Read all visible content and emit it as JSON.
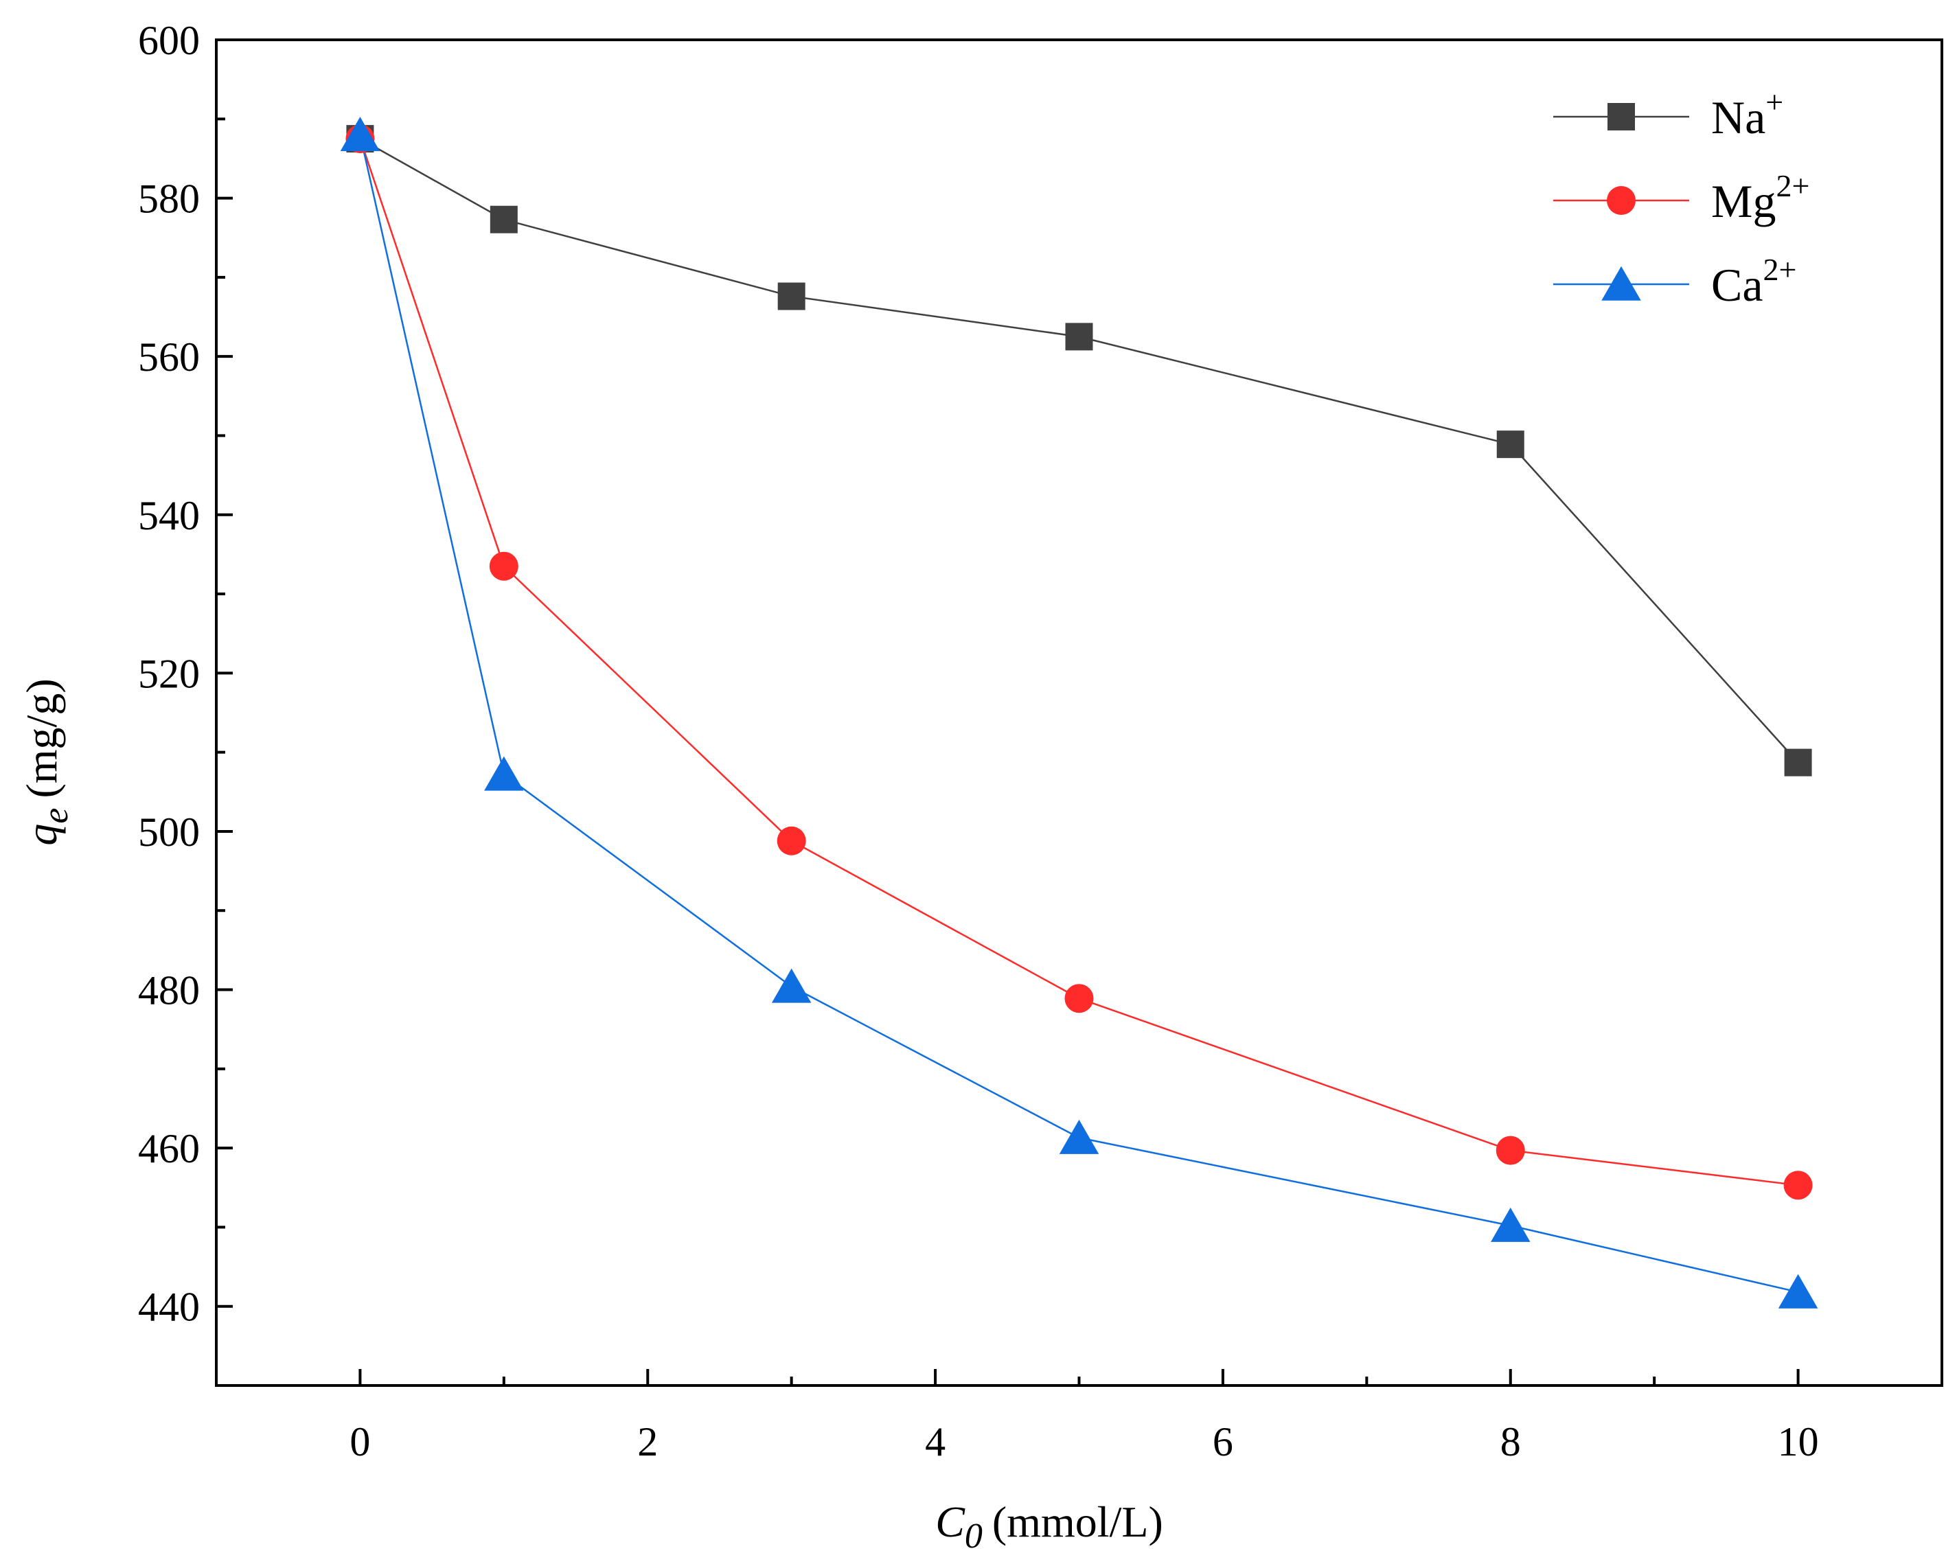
{
  "chart_data": {
    "type": "line",
    "title": "",
    "x": [
      0,
      1,
      3,
      5,
      8,
      10
    ],
    "series": [
      {
        "name": "Na",
        "charge": "+",
        "marker": "square",
        "color": "#404040",
        "values": [
          587.5,
          577.3,
          567.6,
          562.5,
          548.9,
          508.7
        ]
      },
      {
        "name": "Mg",
        "charge": "2+",
        "marker": "circle",
        "color": "#ff2a2a",
        "values": [
          587.5,
          533.5,
          498.8,
          478.9,
          459.7,
          455.3
        ]
      },
      {
        "name": "Ca",
        "charge": "2+",
        "marker": "triangle",
        "color": "#0f6ee0",
        "values": [
          588.0,
          507.2,
          480.4,
          461.3,
          450.2,
          441.8
        ]
      }
    ],
    "xlabel_symbol": "C",
    "xlabel_subscript": "0",
    "xlabel_unit": "(mmol/L)",
    "ylabel_symbol": "q",
    "ylabel_subscript": "e",
    "ylabel_unit": "(mg/g)",
    "xlim": [
      -1,
      11
    ],
    "ylim": [
      430,
      600
    ],
    "x_ticks": [
      0,
      2,
      4,
      6,
      8,
      10
    ],
    "y_ticks": [
      440,
      460,
      480,
      500,
      520,
      540,
      560,
      580,
      600
    ],
    "grid": false,
    "legend_position": "top-right"
  }
}
